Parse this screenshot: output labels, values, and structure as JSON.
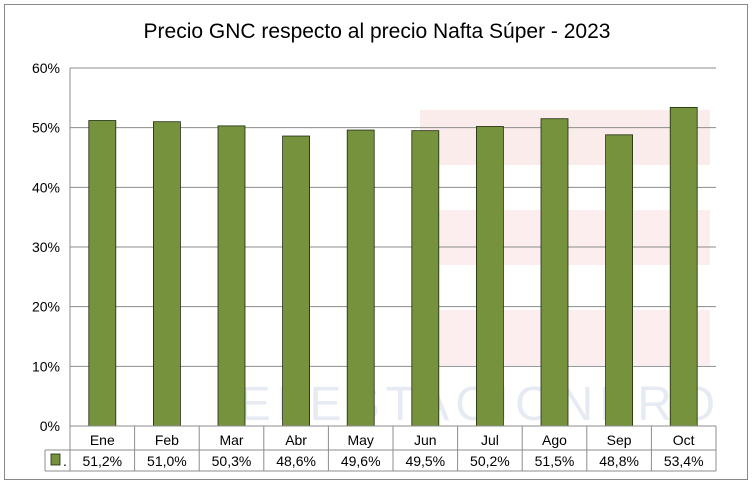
{
  "chart_data": {
    "type": "bar",
    "title": "Precio GNC respecto al precio Nafta Súper - 2023",
    "categories": [
      "Ene",
      "Feb",
      "Mar",
      "Abr",
      "May",
      "Jun",
      "Jul",
      "Ago",
      "Sep",
      "Oct"
    ],
    "values": [
      51.2,
      51.0,
      50.3,
      48.6,
      49.6,
      49.5,
      50.2,
      51.5,
      48.8,
      53.4
    ],
    "value_labels": [
      "51,2%",
      "51,0%",
      "50,3%",
      "48,6%",
      "49,6%",
      "49,5%",
      "50,2%",
      "51,5%",
      "48,8%",
      "53,4%"
    ],
    "ylim": [
      0,
      60
    ],
    "yticks": [
      "0%",
      "10%",
      "20%",
      "30%",
      "40%",
      "50%",
      "60%"
    ],
    "grid": true,
    "data_table": true,
    "legend_key_label": ".",
    "bar_color": "#76923c",
    "watermark": "ELESTACIONERO"
  }
}
